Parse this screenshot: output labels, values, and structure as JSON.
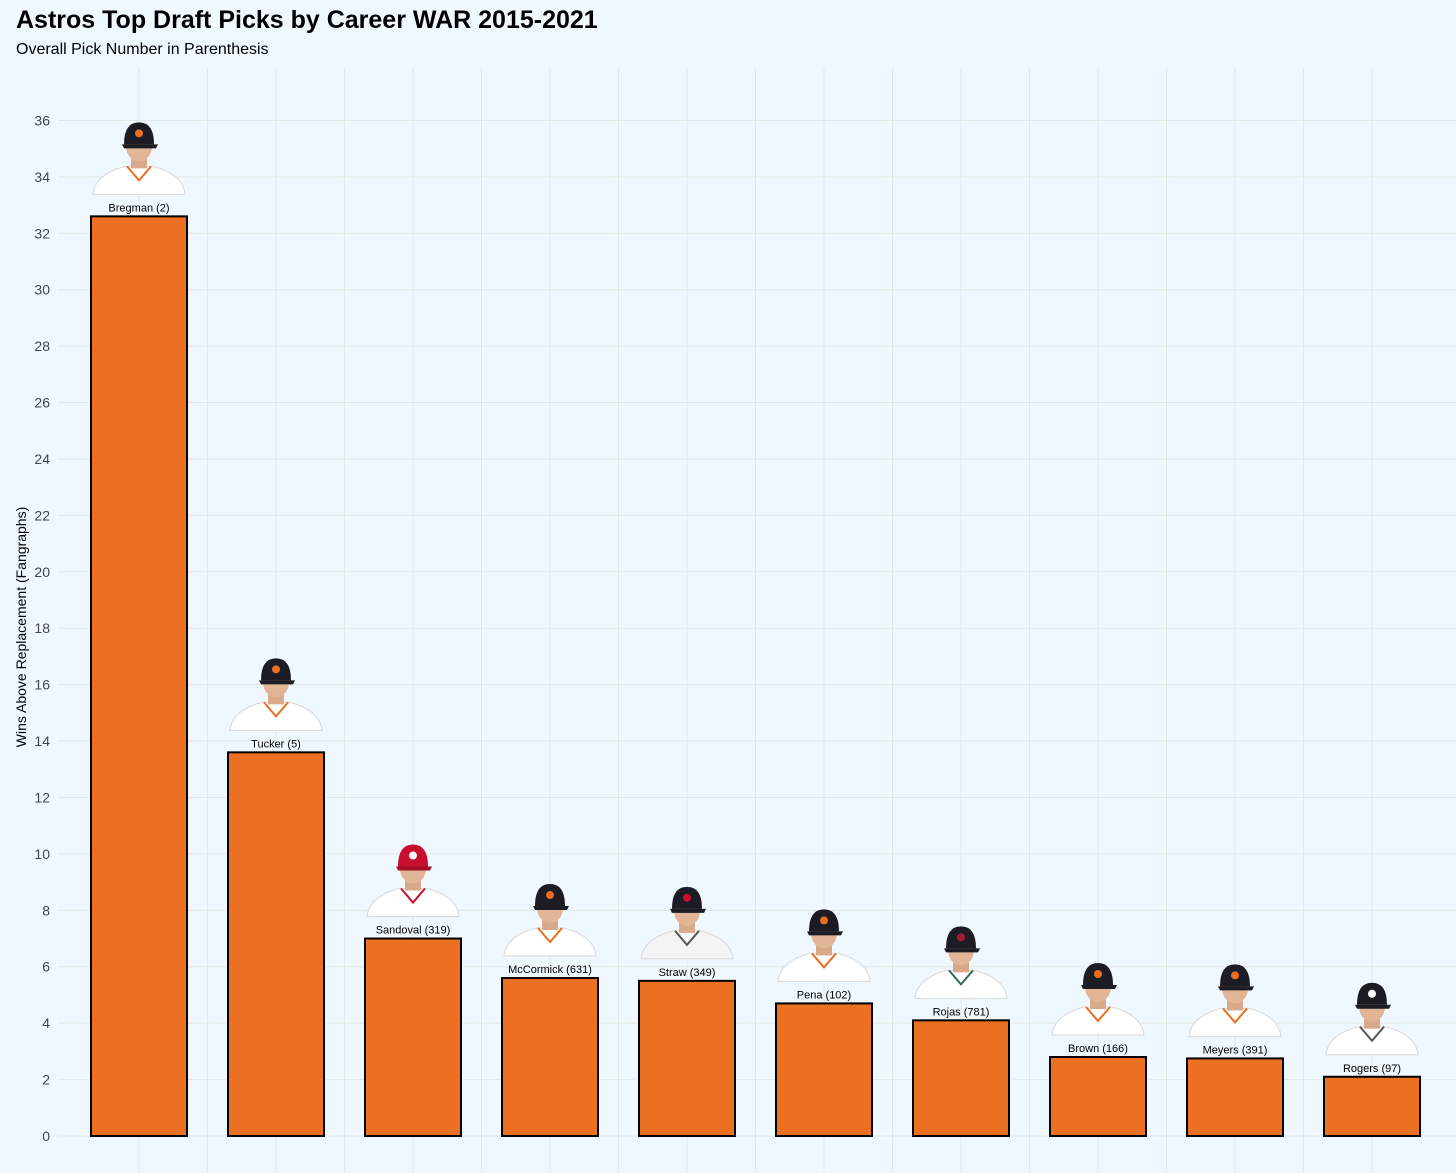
{
  "chart_data": {
    "type": "bar",
    "title": "Astros Top Draft Picks by Career WAR 2015-2021",
    "subtitle": "Overall Pick Number in Parenthesis",
    "xlabel": "",
    "ylabel": "Wins Above Replacement (Fangraphs)",
    "ylim": [
      0,
      38
    ],
    "yticks": [
      0,
      2,
      4,
      6,
      8,
      10,
      12,
      14,
      16,
      18,
      20,
      22,
      24,
      26,
      28,
      30,
      32,
      34,
      36
    ],
    "grid": true,
    "categories": [
      "Bregman (2)",
      "Tucker (5)",
      "Sandoval (319)",
      "McCormick (631)",
      "Straw (349)",
      "Pena (102)",
      "Rojas (781)",
      "Brown (166)",
      "Meyers (391)",
      "Rogers (97)"
    ],
    "values": [
      32.6,
      13.6,
      7.0,
      5.6,
      5.5,
      4.7,
      4.1,
      2.8,
      2.75,
      2.1
    ],
    "bar_color": "#ec7022",
    "player_caps": [
      "astros",
      "astros",
      "angels",
      "astros",
      "guardians",
      "astros",
      "diamondbacks",
      "astros",
      "astros",
      "tigers"
    ]
  }
}
